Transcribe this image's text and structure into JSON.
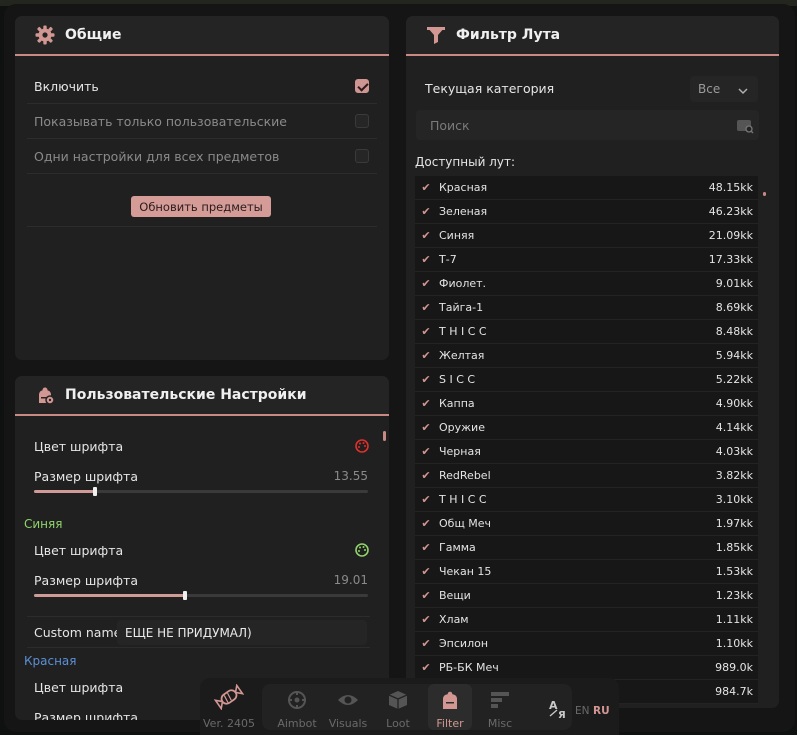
{
  "general": {
    "title": "Общие",
    "rows": [
      {
        "label": "Включить",
        "checked": true
      },
      {
        "label": "Показывать только пользовательские",
        "checked": false
      },
      {
        "label": "Одни настройки для всех предметов",
        "checked": false
      }
    ],
    "update_button": "Обновить предметы"
  },
  "custom": {
    "title": "Пользовательские Настройки",
    "font_color_label": "Цвет шрифта",
    "font_size_label": "Размер шрифта",
    "first": {
      "color": "#e0302b",
      "size": "13.55",
      "fill": 0.18
    },
    "group2": {
      "name": "Синяя",
      "name_color": "#8fd46a",
      "color": "#8fd46a",
      "size": "19.01",
      "fill": 0.45
    },
    "custom_name_label": "Custom name",
    "custom_name_value": "ЕЩЕ НЕ ПРИДУМАЛ)",
    "group3": {
      "name": "Красная",
      "name_color": "#5b8fd6"
    }
  },
  "loot": {
    "title": "Фильтр Лута",
    "category_label": "Текущая категория",
    "category_value": "Все",
    "search_placeholder": "Поиск",
    "available_label": "Доступный лут:",
    "items": [
      {
        "name": "Красная",
        "value": "48.15kk"
      },
      {
        "name": "Зеленая",
        "value": "46.23kk"
      },
      {
        "name": "Синяя",
        "value": "21.09kk"
      },
      {
        "name": "Т-7",
        "value": "17.33kk"
      },
      {
        "name": "Фиолет.",
        "value": "9.01kk"
      },
      {
        "name": "Тайга-1",
        "value": "8.69kk"
      },
      {
        "name": "T H I C C",
        "value": "8.48kk"
      },
      {
        "name": "Желтая",
        "value": "5.94kk"
      },
      {
        "name": "S I C C",
        "value": "5.22kk"
      },
      {
        "name": "Каппа",
        "value": "4.90kk"
      },
      {
        "name": "Оружие",
        "value": "4.14kk"
      },
      {
        "name": "Черная",
        "value": "4.03kk"
      },
      {
        "name": "RedRebel",
        "value": "3.82kk"
      },
      {
        "name": "T H I C C",
        "value": "3.10kk"
      },
      {
        "name": "Общ Меч",
        "value": "1.97kk"
      },
      {
        "name": "Гамма",
        "value": "1.85kk"
      },
      {
        "name": "Чекан 15",
        "value": "1.53kk"
      },
      {
        "name": "Вещи",
        "value": "1.23kk"
      },
      {
        "name": "Хлам",
        "value": "1.11kk"
      },
      {
        "name": "Эпсилон",
        "value": "1.10kk"
      },
      {
        "name": "РБ-БК Меч",
        "value": "989.0k"
      },
      {
        "name": "",
        "value": "984.7k"
      }
    ]
  },
  "nav": {
    "version": "Ver. 2405",
    "tabs": [
      "Aimbot",
      "Visuals",
      "Loot",
      "Filter",
      "Misc"
    ],
    "active": "Filter",
    "lang_en": "EN",
    "lang_ru": "RU"
  },
  "colors": {
    "accent": "#d39793",
    "panel": "#202020",
    "background": "#151515"
  }
}
